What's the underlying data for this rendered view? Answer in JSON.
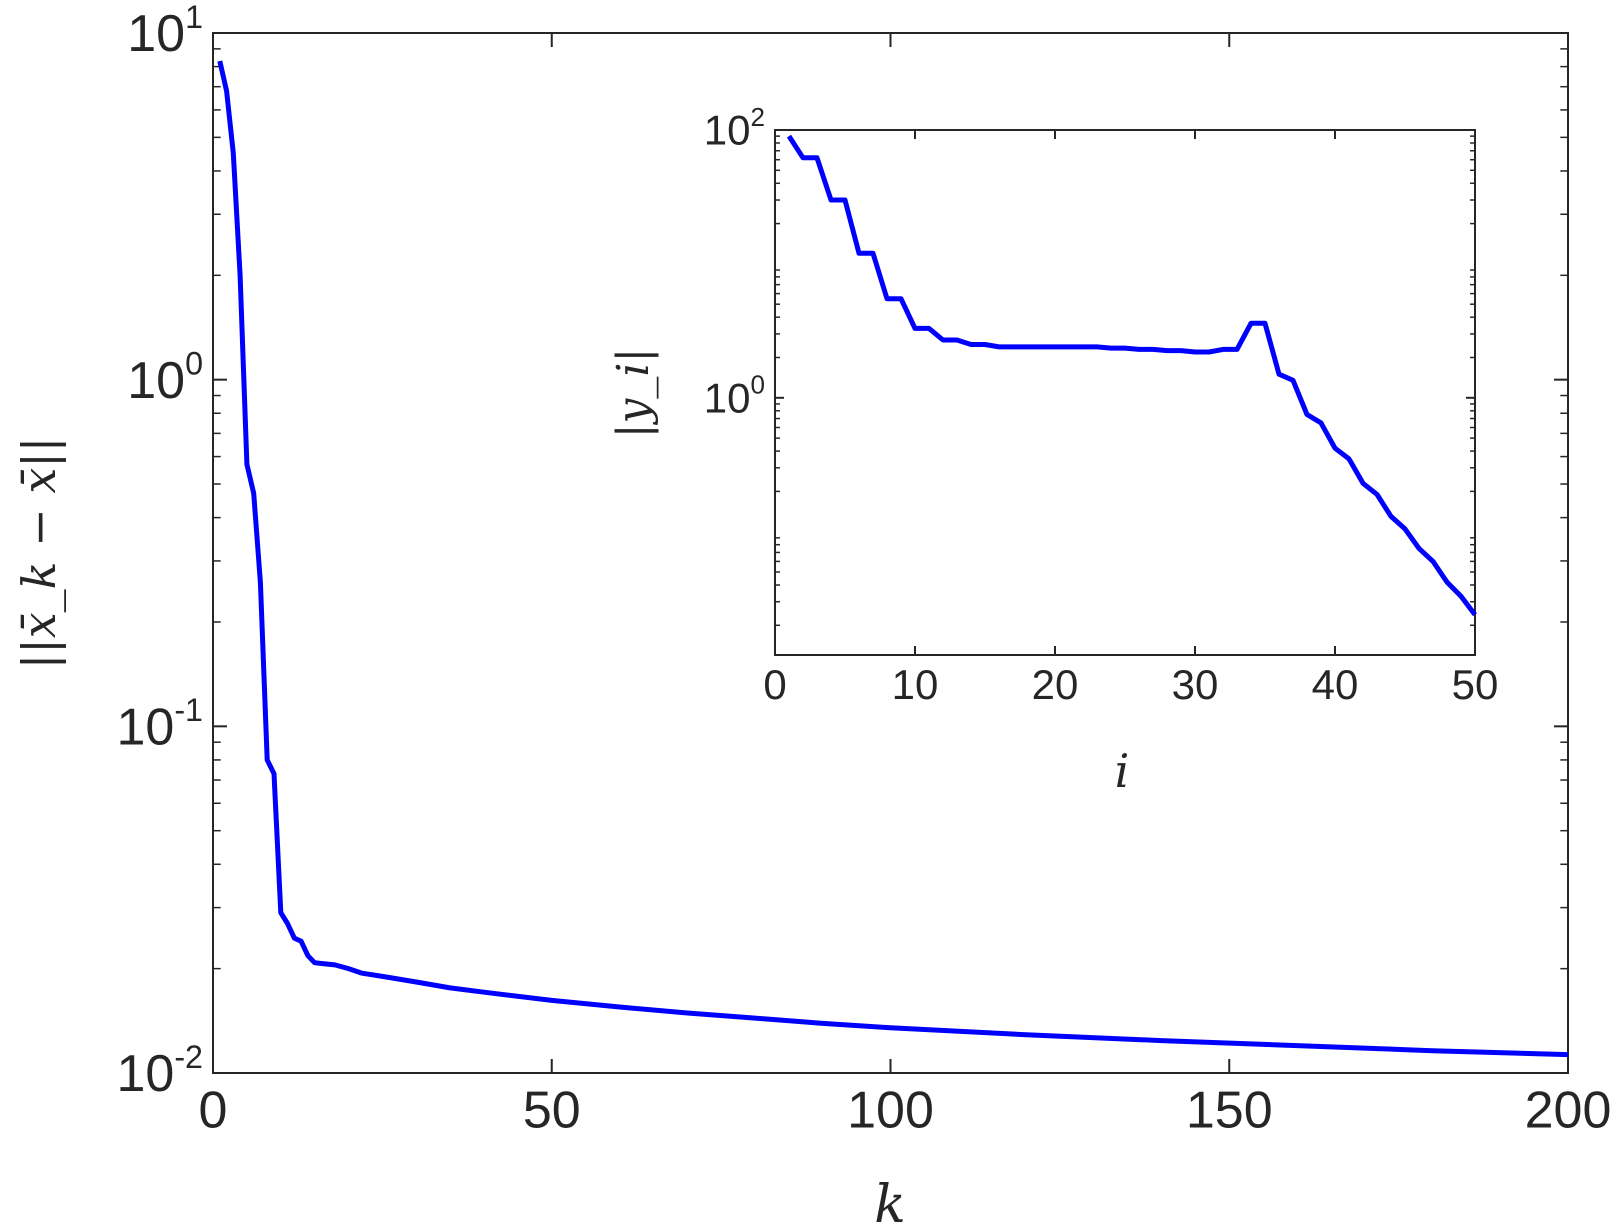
{
  "chart_data": [
    {
      "type": "line",
      "xlabel": "k",
      "ylabel": "||x̄_k − x̄||",
      "xlim": [
        0,
        200
      ],
      "ylim": [
        0.01,
        10
      ],
      "yscale": "log",
      "grid": false,
      "line_color": "#0000ff",
      "xticks": [
        "0",
        "50",
        "100",
        "150",
        "200"
      ],
      "xtick_values": [
        0,
        50,
        100,
        150,
        200
      ],
      "yticks": [
        {
          "base": "10",
          "exp": "1",
          "value": 10
        },
        {
          "base": "10",
          "exp": "0",
          "value": 1
        },
        {
          "base": "10",
          "exp": "-1",
          "value": 0.1
        },
        {
          "base": "10",
          "exp": "-2",
          "value": 0.01
        }
      ],
      "series": [
        {
          "x": [
            1,
            2,
            3,
            4,
            5,
            6,
            7,
            8,
            9,
            10,
            11,
            12,
            13,
            14,
            15,
            16,
            18,
            20,
            22,
            25,
            30,
            35,
            40,
            50,
            60,
            70,
            80,
            90,
            100,
            120,
            140,
            160,
            180,
            200
          ],
          "y": [
            8.3,
            6.8,
            4.5,
            2.0,
            0.57,
            0.47,
            0.26,
            0.08,
            0.073,
            0.029,
            0.027,
            0.0245,
            0.024,
            0.0218,
            0.0208,
            0.0207,
            0.0205,
            0.02,
            0.0194,
            0.019,
            0.0183,
            0.0176,
            0.0171,
            0.0162,
            0.0155,
            0.0149,
            0.0144,
            0.0139,
            0.0135,
            0.0129,
            0.0124,
            0.012,
            0.0116,
            0.0113
          ]
        }
      ]
    },
    {
      "type": "line",
      "xlabel": "i",
      "ylabel": "|y_i|",
      "xlim": [
        0,
        50
      ],
      "ylim": [
        0.012,
        100
      ],
      "yscale": "log",
      "grid": false,
      "line_color": "#0000ff",
      "xticks": [
        "0",
        "10",
        "20",
        "30",
        "40",
        "50"
      ],
      "xtick_values": [
        0,
        10,
        20,
        30,
        40,
        50
      ],
      "yticks": [
        {
          "base": "10",
          "exp": "2",
          "value": 100
        },
        {
          "base": "10",
          "exp": "0",
          "value": 1
        }
      ],
      "series": [
        {
          "x": [
            1,
            2,
            3,
            4,
            5,
            6,
            7,
            8,
            9,
            10,
            11,
            12,
            13,
            14,
            15,
            16,
            17,
            18,
            19,
            20,
            21,
            22,
            23,
            24,
            25,
            26,
            27,
            28,
            29,
            30,
            31,
            32,
            33,
            34,
            35,
            36,
            37,
            38,
            39,
            40,
            41,
            42,
            43,
            44,
            45,
            46,
            47,
            48,
            49,
            50
          ],
          "y": [
            90,
            62,
            62,
            30,
            30,
            12,
            12,
            5.5,
            5.5,
            3.3,
            3.3,
            2.7,
            2.7,
            2.5,
            2.5,
            2.4,
            2.4,
            2.4,
            2.4,
            2.4,
            2.4,
            2.4,
            2.4,
            2.35,
            2.35,
            2.3,
            2.3,
            2.25,
            2.25,
            2.2,
            2.2,
            2.3,
            2.3,
            3.6,
            3.6,
            1.5,
            1.35,
            0.75,
            0.65,
            0.42,
            0.35,
            0.23,
            0.19,
            0.13,
            0.105,
            0.075,
            0.06,
            0.042,
            0.033,
            0.024
          ]
        }
      ]
    }
  ]
}
